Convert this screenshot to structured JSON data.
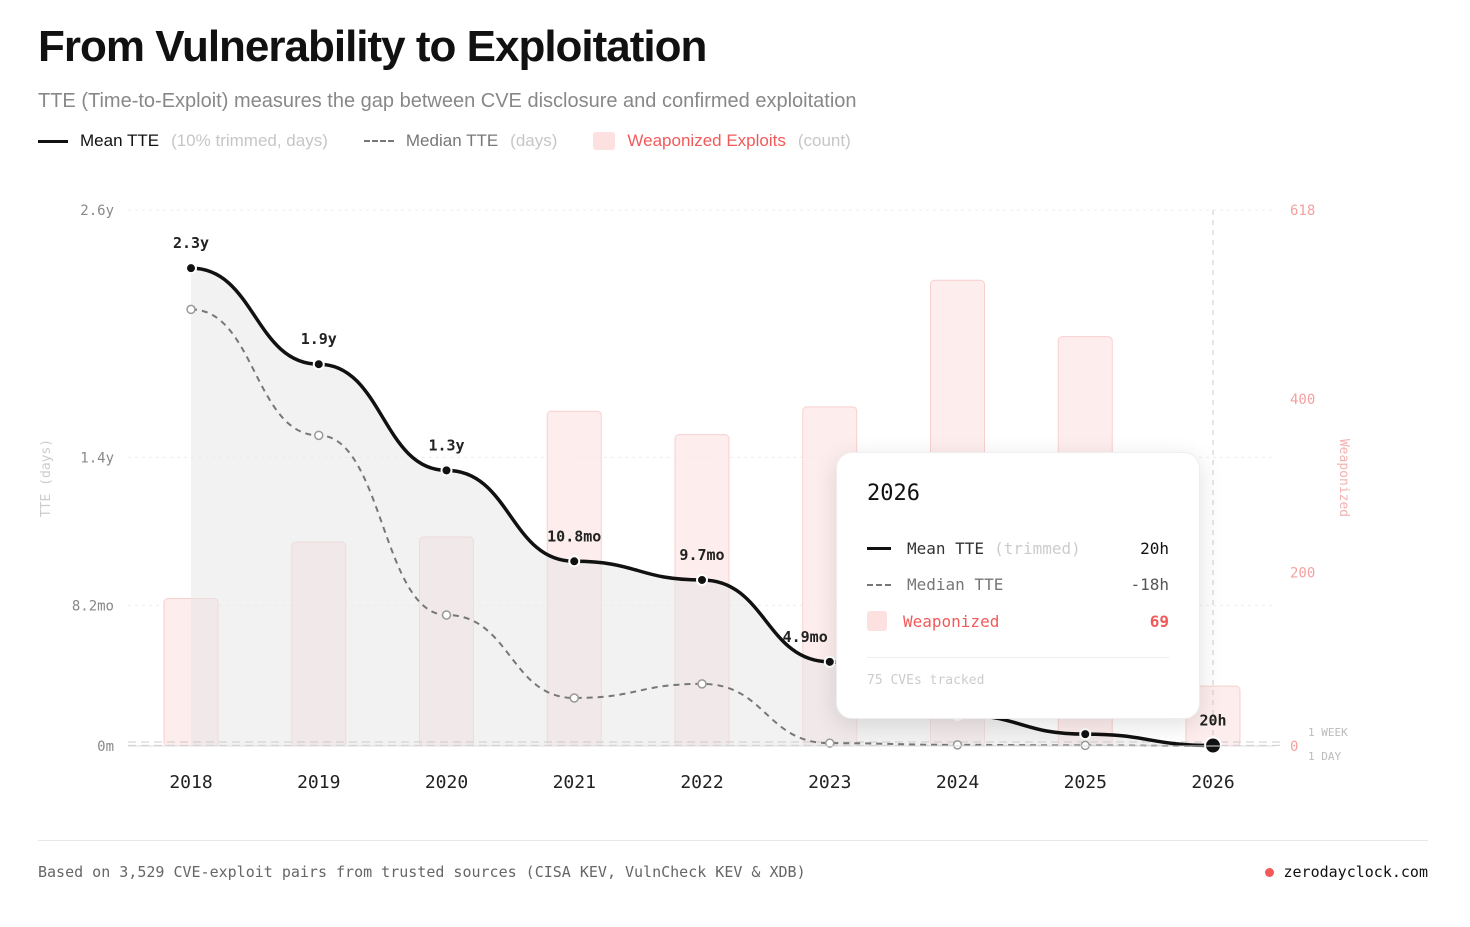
{
  "header": {
    "title": "From Vulnerability to Exploitation",
    "subtitle": "TTE (Time-to-Exploit) measures the gap between CVE disclosure and confirmed exploitation"
  },
  "legend": [
    {
      "label": "Mean TTE",
      "note": "(10% trimmed, days)"
    },
    {
      "label": "Median TTE",
      "note": "(days)"
    },
    {
      "label": "Weaponized Exploits",
      "note": "(count)"
    }
  ],
  "colors": {
    "mean": "#111111",
    "median": "#777777",
    "bars": "#fde8e8",
    "bars_border": "#f8caca",
    "accent": "#f25a5a"
  },
  "chart_data": {
    "type": "line",
    "categories": [
      "2018",
      "2019",
      "2020",
      "2021",
      "2022",
      "2023",
      "2024",
      "2025",
      "2026"
    ],
    "y_left": {
      "label": "TTE (days)",
      "range_days": [
        0,
        949
      ],
      "ticks": [
        {
          "days": 0,
          "label": "0m"
        },
        {
          "days": 249,
          "label": "8.2mo"
        },
        {
          "days": 511,
          "label": "1.4y"
        },
        {
          "days": 949,
          "label": "2.6y"
        }
      ]
    },
    "y_right": {
      "label": "Weaponized",
      "range": [
        0,
        618
      ],
      "ticks": [
        0,
        200,
        400,
        618
      ]
    },
    "reference_lines": [
      {
        "days": 7,
        "label": "1 WEEK"
      },
      {
        "days": 1,
        "label": "1 DAY"
      }
    ],
    "series": [
      {
        "name": "Mean TTE",
        "type": "line",
        "values": [
          846,
          676,
          488,
          327,
          294,
          149,
          55,
          21,
          0.83
        ],
        "labels": [
          "2.3y",
          "1.9y",
          "1.3y",
          "10.8mo",
          "9.7mo",
          "4.9mo",
          "",
          "",
          "20h"
        ]
      },
      {
        "name": "Median TTE",
        "type": "line",
        "dashed": true,
        "values": [
          773,
          550,
          232,
          85,
          110,
          5,
          2,
          1,
          -0.75
        ]
      },
      {
        "name": "Weaponized Exploits",
        "type": "bar",
        "axis": "right",
        "values": [
          170,
          235,
          241,
          386,
          359,
          391,
          537,
          472,
          69
        ]
      }
    ],
    "grid": true,
    "highlighted": "2026"
  },
  "tooltip": {
    "year": "2026",
    "rows": [
      {
        "label": "Mean TTE",
        "note": "(trimmed)",
        "value": "20h"
      },
      {
        "label": "Median TTE",
        "value": "-18h"
      },
      {
        "label": "Weaponized",
        "value": "69"
      }
    ],
    "footer": "75 CVEs tracked"
  },
  "footer": {
    "source": "Based on 3,529 CVE-exploit pairs from trusted sources (CISA KEV, VulnCheck KEV & XDB)",
    "site": "zerodayclock.com"
  }
}
